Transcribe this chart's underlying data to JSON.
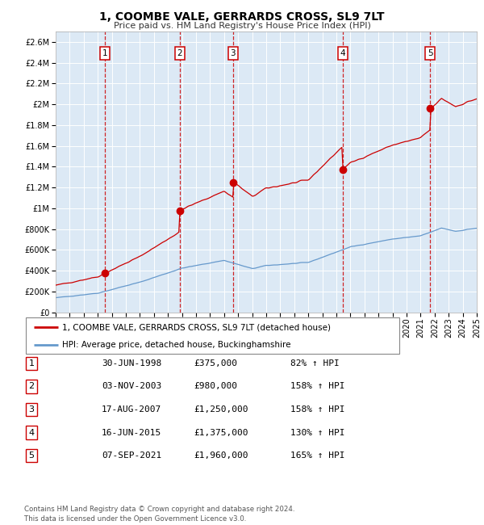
{
  "title": "1, COOMBE VALE, GERRARDS CROSS, SL9 7LT",
  "subtitle": "Price paid vs. HM Land Registry's House Price Index (HPI)",
  "plot_bg_color": "#dce9f5",
  "ylim": [
    0,
    2700000
  ],
  "yticks": [
    0,
    200000,
    400000,
    600000,
    800000,
    1000000,
    1200000,
    1400000,
    1600000,
    1800000,
    2000000,
    2200000,
    2400000,
    2600000
  ],
  "ytick_labels": [
    "£0",
    "£200K",
    "£400K",
    "£600K",
    "£800K",
    "£1M",
    "£1.2M",
    "£1.4M",
    "£1.6M",
    "£1.8M",
    "£2M",
    "£2.2M",
    "£2.4M",
    "£2.6M"
  ],
  "sale_dates_year": [
    1998.496,
    2003.836,
    2007.632,
    2015.458,
    2021.678
  ],
  "sale_prices": [
    375000,
    980000,
    1250000,
    1375000,
    1960000
  ],
  "sale_labels": [
    "1",
    "2",
    "3",
    "4",
    "5"
  ],
  "red_line_color": "#cc0000",
  "blue_line_color": "#6699cc",
  "legend_label_red": "1, COOMBE VALE, GERRARDS CROSS, SL9 7LT (detached house)",
  "legend_label_blue": "HPI: Average price, detached house, Buckinghamshire",
  "table_rows": [
    [
      "1",
      "30-JUN-1998",
      "£375,000",
      "82% ↑ HPI"
    ],
    [
      "2",
      "03-NOV-2003",
      "£980,000",
      "158% ↑ HPI"
    ],
    [
      "3",
      "17-AUG-2007",
      "£1,250,000",
      "158% ↑ HPI"
    ],
    [
      "4",
      "16-JUN-2015",
      "£1,375,000",
      "130% ↑ HPI"
    ],
    [
      "5",
      "07-SEP-2021",
      "£1,960,000",
      "165% ↑ HPI"
    ]
  ],
  "footnote": "Contains HM Land Registry data © Crown copyright and database right 2024.\nThis data is licensed under the Open Government Licence v3.0.",
  "xmin": 1995,
  "xmax": 2025
}
